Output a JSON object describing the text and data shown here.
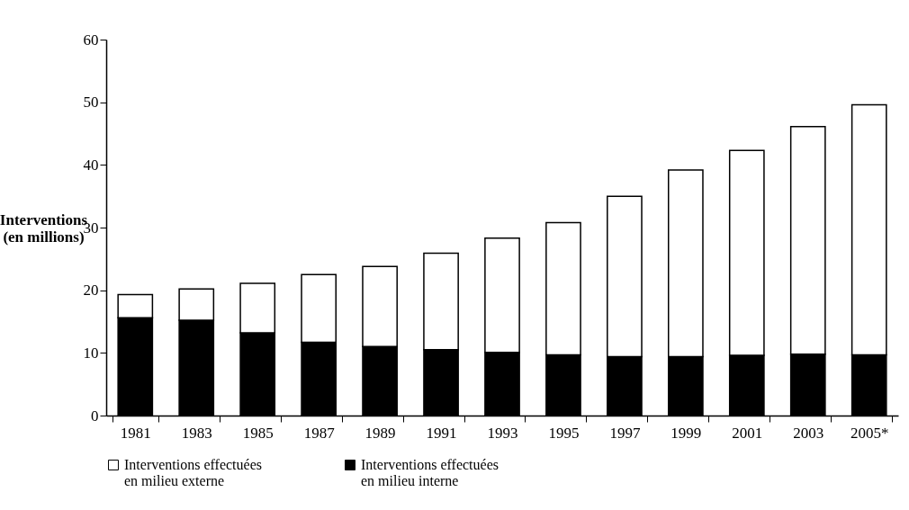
{
  "chart_data": {
    "type": "bar",
    "stacked": true,
    "ylabel": "Interventions (en millions)",
    "categories": [
      "1981",
      "1983",
      "1985",
      "1987",
      "1989",
      "1991",
      "1993",
      "1995",
      "1997",
      "1999",
      "2001",
      "2003",
      "2005*"
    ],
    "series": [
      {
        "name": "Interventions effectuées en milieu interne",
        "color": "#000000",
        "values": [
          15.6,
          15.2,
          13.2,
          11.7,
          11.0,
          10.5,
          10.1,
          9.7,
          9.4,
          9.4,
          9.6,
          9.8,
          9.7
        ]
      },
      {
        "name": "Interventions effectuées en milieu externe",
        "color": "#ffffff",
        "values": [
          3.7,
          5.0,
          7.9,
          10.8,
          12.8,
          15.4,
          18.2,
          21.1,
          25.6,
          29.8,
          32.7,
          36.3,
          39.9
        ]
      }
    ],
    "ylim": [
      0,
      60
    ],
    "yticks": [
      0,
      10,
      20,
      30,
      40,
      50,
      60
    ],
    "grid": false,
    "legend": "bottom"
  }
}
